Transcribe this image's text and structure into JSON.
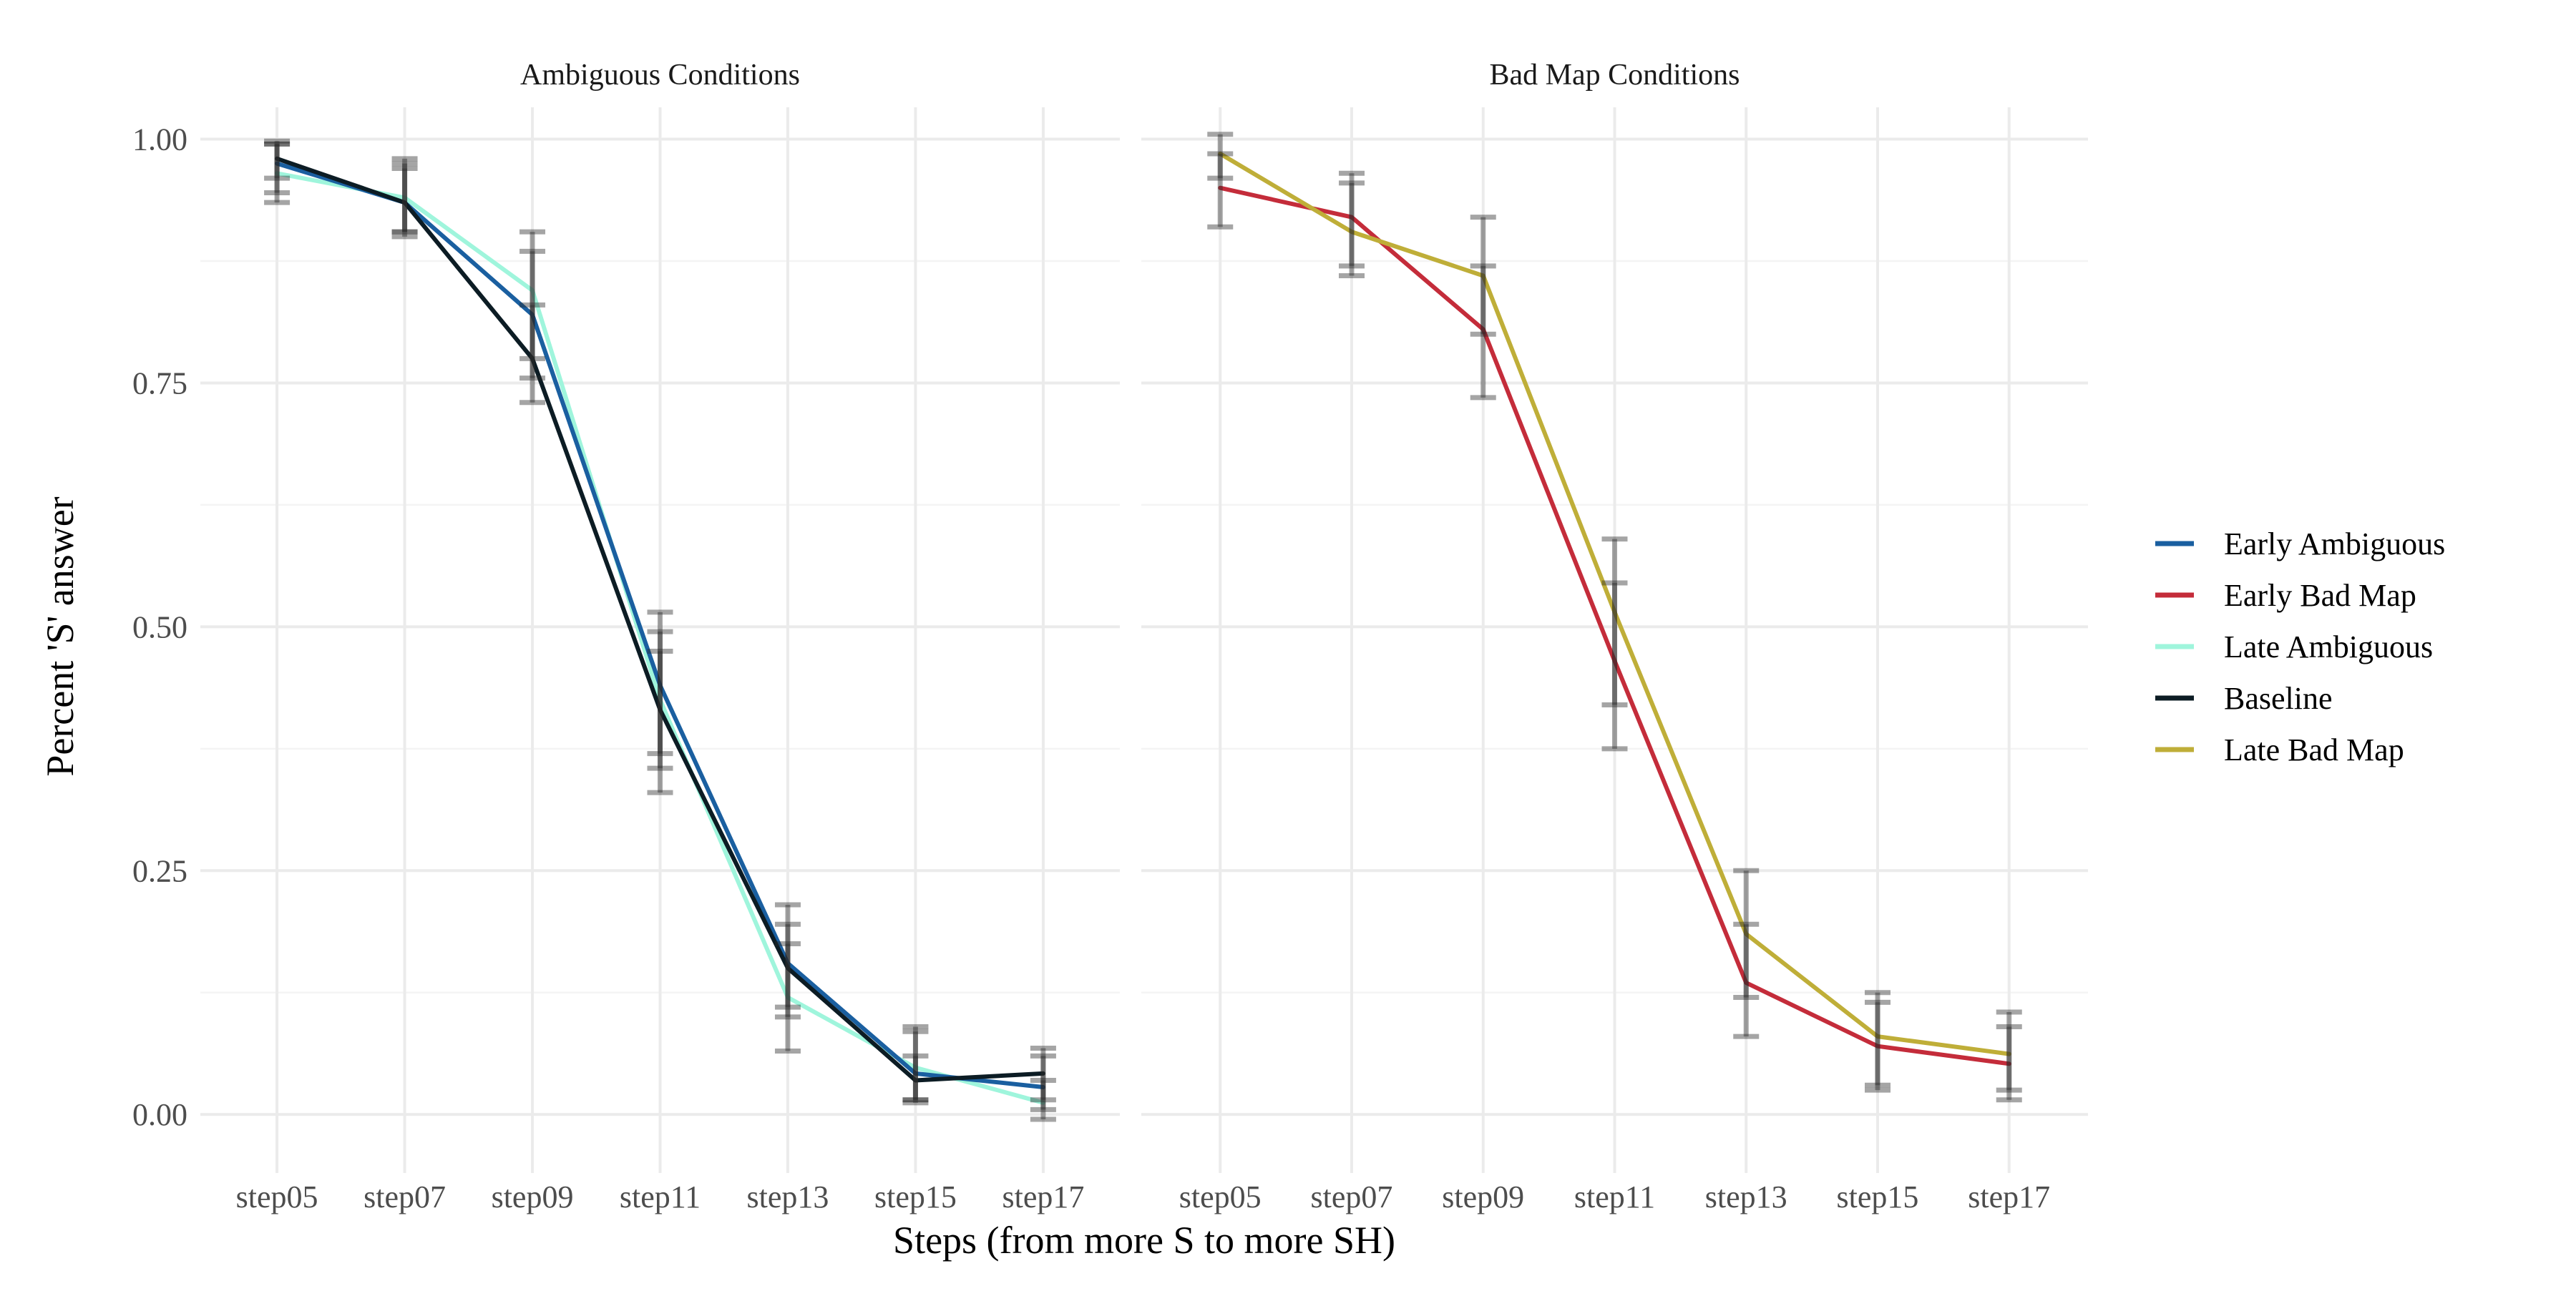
{
  "chart_data": {
    "type": "line",
    "xlabel": "Steps (from more S to more SH)",
    "ylabel": "Percent 'S' answer",
    "ylim": [
      -0.06,
      1.04
    ],
    "y_ticks": [
      "0.00",
      "0.25",
      "0.50",
      "0.75",
      "1.00"
    ],
    "y_tick_values": [
      0,
      0.25,
      0.5,
      0.75,
      1.0
    ],
    "categories": [
      "step05",
      "step07",
      "step09",
      "step11",
      "step13",
      "step15",
      "step17"
    ],
    "grid": true,
    "legend_position": "right",
    "legend": [
      {
        "name": "Early Ambiguous",
        "color": "#1a5fa0"
      },
      {
        "name": "Early Bad Map",
        "color": "#c42c3a"
      },
      {
        "name": "Late Ambiguous",
        "color": "#9ff5dc"
      },
      {
        "name": "Baseline",
        "color": "#0c1c24"
      },
      {
        "name": "Late Bad Map",
        "color": "#bfae38"
      }
    ],
    "panels": [
      {
        "title": "Ambiguous Conditions",
        "series": [
          {
            "name": "Late Ambiguous",
            "color": "#9ff5dc",
            "values": [
              0.965,
              0.94,
              0.845,
              0.425,
              0.12,
              0.048,
              0.012
            ],
            "error_low": [
              0.935,
              0.905,
              0.775,
              0.355,
              0.065,
              0.015,
              -0.005
            ],
            "error_high": [
              0.995,
              0.975,
              0.905,
              0.495,
              0.175,
              0.085,
              0.035
            ]
          },
          {
            "name": "Early Ambiguous",
            "color": "#1a5fa0",
            "values": [
              0.975,
              0.935,
              0.82,
              0.44,
              0.155,
              0.042,
              0.028
            ],
            "error_low": [
              0.945,
              0.9,
              0.755,
              0.37,
              0.1,
              0.015,
              0.005
            ],
            "error_high": [
              0.995,
              0.97,
              0.885,
              0.515,
              0.215,
              0.09,
              0.06
            ]
          },
          {
            "name": "Baseline",
            "color": "#0c1c24",
            "values": [
              0.98,
              0.935,
              0.775,
              0.415,
              0.15,
              0.035,
              0.042
            ],
            "error_low": [
              0.96,
              0.905,
              0.73,
              0.33,
              0.11,
              0.012,
              0.015
            ],
            "error_high": [
              0.998,
              0.98,
              0.83,
              0.475,
              0.195,
              0.06,
              0.068
            ]
          }
        ]
      },
      {
        "title": "Bad Map Conditions",
        "series": [
          {
            "name": "Early Bad Map",
            "color": "#c42c3a",
            "values": [
              0.95,
              0.92,
              0.805,
              0.465,
              0.135,
              0.07,
              0.052
            ],
            "error_low": [
              0.91,
              0.87,
              0.735,
              0.375,
              0.08,
              0.03,
              0.015
            ],
            "error_high": [
              0.985,
              0.965,
              0.87,
              0.545,
              0.195,
              0.115,
              0.09
            ]
          },
          {
            "name": "Late Bad Map",
            "color": "#bfae38",
            "values": [
              0.985,
              0.905,
              0.86,
              0.515,
              0.185,
              0.08,
              0.062
            ],
            "error_low": [
              0.96,
              0.86,
              0.8,
              0.42,
              0.12,
              0.025,
              0.025
            ],
            "error_high": [
              1.005,
              0.955,
              0.92,
              0.59,
              0.25,
              0.125,
              0.105
            ]
          }
        ]
      }
    ]
  }
}
